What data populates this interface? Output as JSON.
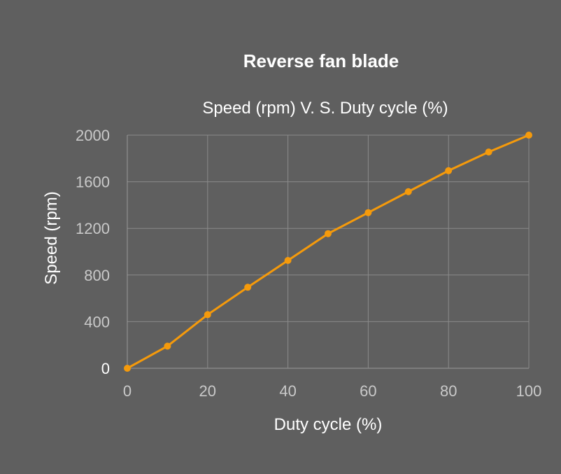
{
  "chart_data": {
    "type": "line",
    "title": "Reverse fan blade",
    "subtitle": "Speed (rpm) V. S. Duty cycle (%)",
    "xlabel": "Duty cycle (%)",
    "ylabel": "Speed (rpm)",
    "xlim": [
      0,
      100
    ],
    "ylim": [
      0,
      2000
    ],
    "xticks": [
      0,
      20,
      40,
      60,
      80,
      100
    ],
    "yticks": [
      0,
      400,
      800,
      1200,
      1600,
      2000
    ],
    "grid": true,
    "legend": "none",
    "series": [
      {
        "color": "#f59a0b",
        "x": [
          0,
          10,
          20,
          30,
          40,
          50,
          60,
          70,
          80,
          90,
          100
        ],
        "values": [
          0,
          190,
          460,
          695,
          925,
          1155,
          1335,
          1515,
          1695,
          1855,
          2000
        ]
      }
    ]
  }
}
